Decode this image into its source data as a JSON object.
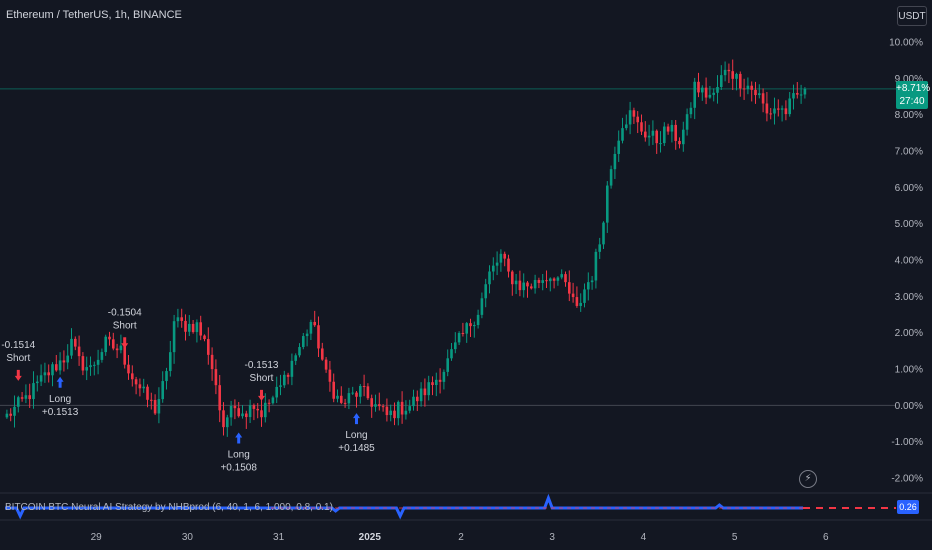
{
  "header": {
    "title": "Ethereum / TetherUS, 1h, BINANCE"
  },
  "currency_button": {
    "label": "USDT"
  },
  "price_badge": {
    "change": "+8.71%",
    "countdown": "27:40"
  },
  "indicator": {
    "label": "BITCOIN BTC Neural AI Strategy by NHBprod (6, 40, 1, 6, 1.000, 0.8, 0.1)",
    "value": "0.26"
  },
  "icons": {
    "alert": "lightning-icon"
  },
  "colors": {
    "up": "#089981",
    "down": "#f23645",
    "long": "#2962ff",
    "short": "#f23645",
    "indicator": "#2962ff",
    "indicator_dash": "#f23645"
  },
  "chart_data": {
    "type": "candlestick",
    "y_scale": "percent",
    "ylim": [
      -2.3,
      10.4
    ],
    "y_ticks": [
      {
        "value": 10,
        "label": "10.00%"
      },
      {
        "value": 9,
        "label": "9.00%"
      },
      {
        "value": 8,
        "label": "8.00%"
      },
      {
        "value": 7,
        "label": "7.00%"
      },
      {
        "value": 6,
        "label": "6.00%"
      },
      {
        "value": 5,
        "label": "5.00%"
      },
      {
        "value": 4,
        "label": "4.00%"
      },
      {
        "value": 3,
        "label": "3.00%"
      },
      {
        "value": 2,
        "label": "2.00%"
      },
      {
        "value": 1,
        "label": "1.00%"
      },
      {
        "value": 0,
        "label": "0.00%"
      },
      {
        "value": -1,
        "label": "-1.00%"
      },
      {
        "value": -2,
        "label": "-2.00%"
      }
    ],
    "x_ticks": [
      {
        "bar": 24,
        "label": "29",
        "bold": false
      },
      {
        "bar": 48,
        "label": "30",
        "bold": false
      },
      {
        "bar": 72,
        "label": "31",
        "bold": false
      },
      {
        "bar": 96,
        "label": "2025",
        "bold": true
      },
      {
        "bar": 120,
        "label": "2",
        "bold": false
      },
      {
        "bar": 144,
        "label": "3",
        "bold": false
      },
      {
        "bar": 168,
        "label": "4",
        "bold": false
      },
      {
        "bar": 192,
        "label": "5",
        "bold": false
      },
      {
        "bar": 216,
        "label": "6",
        "bold": false
      }
    ],
    "bar_count": 211,
    "last_value": 8.71,
    "anchors": [
      [
        0,
        -0.3
      ],
      [
        5,
        0.2
      ],
      [
        10,
        0.8
      ],
      [
        15,
        1.3
      ],
      [
        17,
        1.7
      ],
      [
        19,
        1.2
      ],
      [
        22,
        1.0
      ],
      [
        26,
        1.7
      ],
      [
        30,
        1.5
      ],
      [
        33,
        0.8
      ],
      [
        36,
        0.3
      ],
      [
        39,
        -0.1
      ],
      [
        42,
        0.8
      ],
      [
        44,
        2.3
      ],
      [
        47,
        2.2
      ],
      [
        50,
        2.2
      ],
      [
        53,
        1.5
      ],
      [
        55,
        0.6
      ],
      [
        57,
        -0.8
      ],
      [
        59,
        0.2
      ],
      [
        62,
        -0.3
      ],
      [
        64,
        0.1
      ],
      [
        67,
        -0.2
      ],
      [
        70,
        0.2
      ],
      [
        72,
        0.5
      ],
      [
        74,
        1.0
      ],
      [
        77,
        1.6
      ],
      [
        80,
        2.3
      ],
      [
        82,
        1.7
      ],
      [
        84,
        0.8
      ],
      [
        86,
        0.4
      ],
      [
        88,
        0.0
      ],
      [
        90,
        0.2
      ],
      [
        93,
        0.4
      ],
      [
        96,
        0.1
      ],
      [
        98,
        -0.1
      ],
      [
        100,
        -0.3
      ],
      [
        103,
        -0.1
      ],
      [
        106,
        0.0
      ],
      [
        109,
        0.3
      ],
      [
        112,
        0.6
      ],
      [
        115,
        1.0
      ],
      [
        118,
        1.6
      ],
      [
        121,
        2.1
      ],
      [
        124,
        2.6
      ],
      [
        127,
        3.6
      ],
      [
        130,
        4.1
      ],
      [
        132,
        3.6
      ],
      [
        135,
        3.3
      ],
      [
        138,
        3.3
      ],
      [
        141,
        3.5
      ],
      [
        144,
        3.6
      ],
      [
        147,
        3.3
      ],
      [
        150,
        2.6
      ],
      [
        152,
        3.2
      ],
      [
        154,
        3.6
      ],
      [
        156,
        4.5
      ],
      [
        158,
        6.0
      ],
      [
        160,
        7.1
      ],
      [
        162,
        7.8
      ],
      [
        164,
        8.0
      ],
      [
        166,
        7.7
      ],
      [
        168,
        7.5
      ],
      [
        171,
        7.3
      ],
      [
        174,
        7.6
      ],
      [
        177,
        7.3
      ],
      [
        179,
        7.8
      ],
      [
        181,
        8.8
      ],
      [
        183,
        8.6
      ],
      [
        186,
        8.5
      ],
      [
        188,
        9.0
      ],
      [
        190,
        9.3
      ],
      [
        192,
        9.0
      ],
      [
        195,
        8.8
      ],
      [
        198,
        8.5
      ],
      [
        200,
        8.0
      ],
      [
        202,
        8.2
      ],
      [
        205,
        8.1
      ],
      [
        207,
        8.4
      ],
      [
        209,
        8.6
      ],
      [
        211,
        8.71
      ]
    ],
    "signals": [
      {
        "type": "short",
        "bar": 3,
        "label": "Short",
        "value": "-0.1514"
      },
      {
        "type": "long",
        "bar": 14,
        "label": "Long",
        "value": "+0.1513"
      },
      {
        "type": "short",
        "bar": 31,
        "label": "Short",
        "value": "-0.1504"
      },
      {
        "type": "long",
        "bar": 61,
        "label": "Long",
        "value": "+0.1508"
      },
      {
        "type": "short",
        "bar": 67,
        "label": "Short",
        "value": "-0.1513"
      },
      {
        "type": "long",
        "bar": 92,
        "label": "Long",
        "value": "+0.1485"
      }
    ]
  }
}
